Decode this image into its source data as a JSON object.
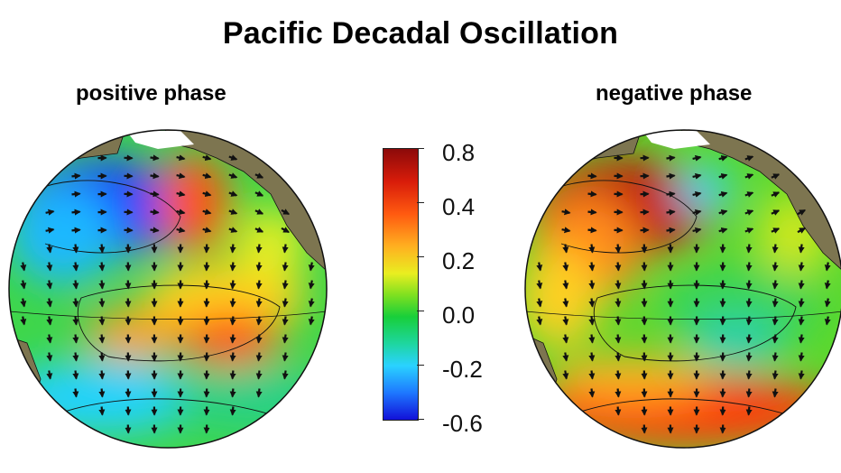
{
  "title": "Pacific Decadal Oscillation",
  "panels": [
    {
      "label": "positive phase"
    },
    {
      "label": "negative phase"
    }
  ],
  "colorbar": {
    "ticks": [
      "0.8",
      "0.4",
      "0.2",
      "0.0",
      "-0.2",
      "-0.6"
    ],
    "colors": [
      "#8c0a0a",
      "#d81c0a",
      "#ff5a10",
      "#ffb020",
      "#e9ee20",
      "#7ee020",
      "#18cf3a",
      "#1ed6a0",
      "#2ad2ff",
      "#1e78ff",
      "#1210d8"
    ]
  },
  "colors": {
    "land": "#7d7550",
    "ice": "#ffffff",
    "arrow": "#111111"
  }
}
